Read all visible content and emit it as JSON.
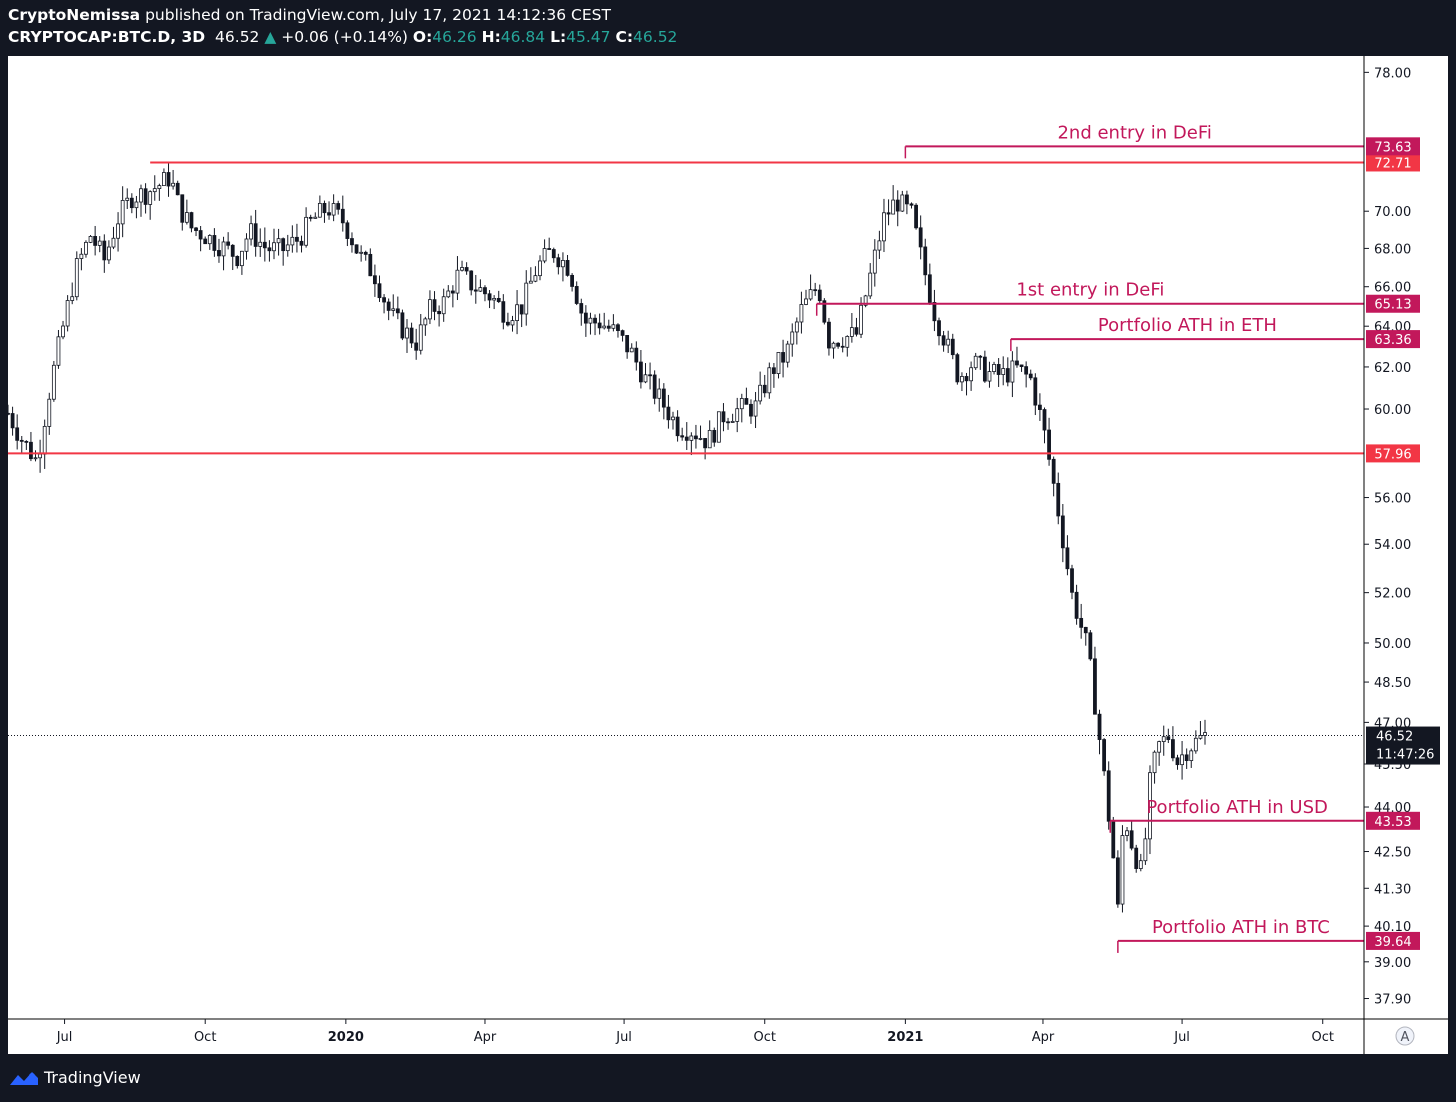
{
  "header": {
    "author": "CryptoNemissa",
    "published_text": " published on TradingView.com, July 17, 2021 14:12:36 CEST",
    "symbol": "CRYPTOCAP:BTC.D, 3D",
    "last": "46.52",
    "change_arrow": "▲",
    "change": "+0.06 (+0.14%)",
    "open_label": "O:",
    "open": "46.26",
    "high_label": "H:",
    "high": "46.84",
    "low_label": "L:",
    "low": "45.47",
    "close_label": "C:",
    "close": "46.52"
  },
  "footer": {
    "brand": "TradingView",
    "logo_icon": "tradingview-logo-icon"
  },
  "chart_data": {
    "type": "candlestick",
    "symbol": "CRYPTOCAP:BTC.D",
    "interval": "3D",
    "x_range": [
      "2019-05-25",
      "2021-10-28"
    ],
    "y_range": [
      37.3,
      79.0
    ],
    "y_scale": "log",
    "x_ticks": [
      {
        "label": "Jul",
        "date": "2019-07-01",
        "bold": false
      },
      {
        "label": "Oct",
        "date": "2019-10-01",
        "bold": false
      },
      {
        "label": "2020",
        "date": "2020-01-01",
        "bold": true
      },
      {
        "label": "Apr",
        "date": "2020-04-01",
        "bold": false
      },
      {
        "label": "Jul",
        "date": "2020-07-01",
        "bold": false
      },
      {
        "label": "Oct",
        "date": "2020-10-01",
        "bold": false
      },
      {
        "label": "2021",
        "date": "2021-01-01",
        "bold": true
      },
      {
        "label": "Apr",
        "date": "2021-04-01",
        "bold": false
      },
      {
        "label": "Jul",
        "date": "2021-07-01",
        "bold": false
      },
      {
        "label": "Oct",
        "date": "2021-10-01",
        "bold": false
      }
    ],
    "y_ticks": [
      "78.00",
      "70.00",
      "68.00",
      "66.00",
      "64.00",
      "62.00",
      "60.00",
      "56.00",
      "54.00",
      "52.00",
      "50.00",
      "48.50",
      "47.00",
      "45.50",
      "44.00",
      "42.50",
      "41.30",
      "40.10",
      "39.00",
      "37.90"
    ],
    "price_path": [
      [
        "2019-05-25",
        59.8
      ],
      [
        "2019-06-03",
        58.6
      ],
      [
        "2019-06-13",
        57.6
      ],
      [
        "2019-06-22",
        61.2
      ],
      [
        "2019-07-01",
        64.3
      ],
      [
        "2019-07-09",
        67.0
      ],
      [
        "2019-07-18",
        68.7
      ],
      [
        "2019-07-27",
        67.4
      ],
      [
        "2019-08-05",
        69.6
      ],
      [
        "2019-08-14",
        70.8
      ],
      [
        "2019-08-23",
        71.0
      ],
      [
        "2019-09-02",
        71.5
      ],
      [
        "2019-09-08",
        71.9
      ],
      [
        "2019-09-14",
        70.2
      ],
      [
        "2019-09-22",
        69.1
      ],
      [
        "2019-10-01",
        68.7
      ],
      [
        "2019-10-12",
        68.1
      ],
      [
        "2019-10-22",
        67.6
      ],
      [
        "2019-10-30",
        68.9
      ],
      [
        "2019-11-10",
        68.0
      ],
      [
        "2019-11-20",
        67.9
      ],
      [
        "2019-12-01",
        68.5
      ],
      [
        "2019-12-10",
        69.5
      ],
      [
        "2019-12-20",
        70.2
      ],
      [
        "2019-12-31",
        69.4
      ],
      [
        "2020-01-10",
        67.6
      ],
      [
        "2020-01-20",
        66.6
      ],
      [
        "2020-01-30",
        64.6
      ],
      [
        "2020-02-08",
        63.8
      ],
      [
        "2020-02-16",
        63.2
      ],
      [
        "2020-02-25",
        64.8
      ],
      [
        "2020-03-05",
        65.2
      ],
      [
        "2020-03-15",
        66.7
      ],
      [
        "2020-03-25",
        66.0
      ],
      [
        "2020-04-05",
        65.5
      ],
      [
        "2020-04-15",
        64.6
      ],
      [
        "2020-04-25",
        65.0
      ],
      [
        "2020-05-05",
        67.0
      ],
      [
        "2020-05-15",
        67.9
      ],
      [
        "2020-05-26",
        67.0
      ],
      [
        "2020-06-05",
        64.2
      ],
      [
        "2020-06-15",
        64.2
      ],
      [
        "2020-06-25",
        63.7
      ],
      [
        "2020-07-05",
        62.8
      ],
      [
        "2020-07-15",
        61.4
      ],
      [
        "2020-07-25",
        60.4
      ],
      [
        "2020-08-05",
        59.2
      ],
      [
        "2020-08-15",
        59.0
      ],
      [
        "2020-08-25",
        58.5
      ],
      [
        "2020-09-04",
        59.7
      ],
      [
        "2020-09-15",
        60.0
      ],
      [
        "2020-09-25",
        60.1
      ],
      [
        "2020-10-05",
        61.8
      ],
      [
        "2020-10-15",
        62.6
      ],
      [
        "2020-10-25",
        64.8
      ],
      [
        "2020-11-05",
        66.1
      ],
      [
        "2020-11-12",
        63.3
      ],
      [
        "2020-11-20",
        63.4
      ],
      [
        "2020-11-30",
        63.6
      ],
      [
        "2020-12-08",
        66.2
      ],
      [
        "2020-12-18",
        69.6
      ],
      [
        "2020-12-26",
        70.6
      ],
      [
        "2021-01-05",
        69.8
      ],
      [
        "2021-01-12",
        67.3
      ],
      [
        "2021-01-20",
        64.7
      ],
      [
        "2021-01-28",
        63.1
      ],
      [
        "2021-02-05",
        61.5
      ],
      [
        "2021-02-14",
        62.2
      ],
      [
        "2021-02-24",
        61.7
      ],
      [
        "2021-03-05",
        61.6
      ],
      [
        "2021-03-15",
        61.9
      ],
      [
        "2021-03-24",
        61.4
      ],
      [
        "2021-04-01",
        59.2
      ],
      [
        "2021-04-10",
        55.8
      ],
      [
        "2021-04-20",
        51.9
      ],
      [
        "2021-04-30",
        49.8
      ],
      [
        "2021-05-06",
        47.3
      ],
      [
        "2021-05-12",
        44.6
      ],
      [
        "2021-05-17",
        42.3
      ],
      [
        "2021-05-20",
        40.6
      ],
      [
        "2021-05-24",
        43.8
      ],
      [
        "2021-05-30",
        42.6
      ],
      [
        "2021-06-05",
        41.7
      ],
      [
        "2021-06-10",
        44.8
      ],
      [
        "2021-06-15",
        46.1
      ],
      [
        "2021-06-22",
        46.5
      ],
      [
        "2021-06-28",
        45.6
      ],
      [
        "2021-07-05",
        46.1
      ],
      [
        "2021-07-16",
        46.52
      ]
    ],
    "annotations": [
      {
        "type": "hline",
        "price": 72.71,
        "start": "2019-08-26",
        "color": "#f23645",
        "badge": "72.71"
      },
      {
        "type": "hline",
        "price": 57.96,
        "start": "2019-05-25",
        "color": "#f23645",
        "badge": "57.96"
      },
      {
        "type": "hline",
        "price": 73.63,
        "start": "2021-01-01",
        "color": "#c2185b",
        "badge": "73.63",
        "label": "2nd entry in DeFi"
      },
      {
        "type": "hline",
        "price": 65.13,
        "start": "2020-11-04",
        "color": "#c2185b",
        "badge": "65.13",
        "label": "1st entry in DeFi"
      },
      {
        "type": "hline",
        "price": 63.36,
        "start": "2021-03-11",
        "color": "#c2185b",
        "badge": "63.36",
        "label": "Portfolio ATH in ETH"
      },
      {
        "type": "hline",
        "price": 43.53,
        "start": "2021-05-15",
        "color": "#c2185b",
        "badge": "43.53",
        "label": "Portfolio ATH in USD"
      },
      {
        "type": "hline",
        "price": 39.64,
        "start": "2021-05-20",
        "color": "#c2185b",
        "badge": "39.64",
        "label": "Portfolio ATH in BTC"
      }
    ],
    "current_price": {
      "value": "46.52",
      "countdown": "11:47:26"
    },
    "auto_scale_button": "A"
  }
}
